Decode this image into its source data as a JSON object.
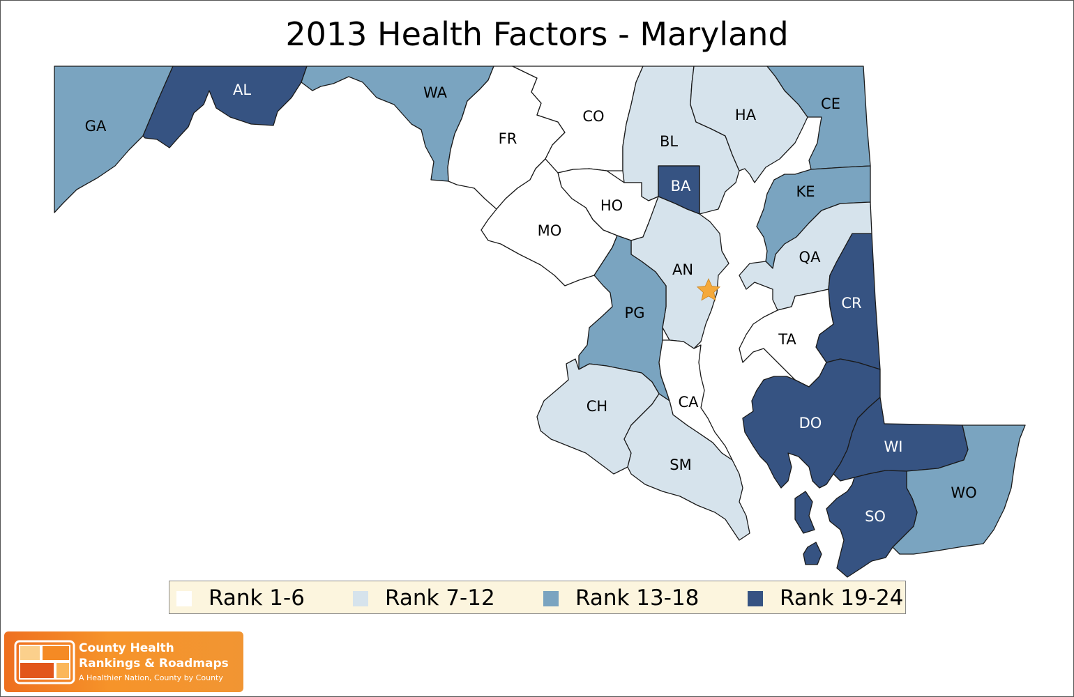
{
  "title": "2013 Health Factors - Maryland",
  "palette": {
    "rank_1_6": "#ffffff",
    "rank_7_12": "#d6e3ec",
    "rank_13_18": "#7aa4c0",
    "rank_19_24": "#365382"
  },
  "counties": [
    {
      "abbr": "GA",
      "rank_group": "rank_13_18"
    },
    {
      "abbr": "AL",
      "rank_group": "rank_19_24"
    },
    {
      "abbr": "WA",
      "rank_group": "rank_13_18"
    },
    {
      "abbr": "FR",
      "rank_group": "rank_1_6"
    },
    {
      "abbr": "CO",
      "rank_group": "rank_1_6"
    },
    {
      "abbr": "BL",
      "rank_group": "rank_7_12"
    },
    {
      "abbr": "HA",
      "rank_group": "rank_7_12"
    },
    {
      "abbr": "CE",
      "rank_group": "rank_13_18"
    },
    {
      "abbr": "BA",
      "rank_group": "rank_19_24"
    },
    {
      "abbr": "HO",
      "rank_group": "rank_1_6"
    },
    {
      "abbr": "MO",
      "rank_group": "rank_1_6"
    },
    {
      "abbr": "KE",
      "rank_group": "rank_13_18"
    },
    {
      "abbr": "QA",
      "rank_group": "rank_7_12"
    },
    {
      "abbr": "AN",
      "rank_group": "rank_7_12"
    },
    {
      "abbr": "PG",
      "rank_group": "rank_13_18"
    },
    {
      "abbr": "CR",
      "rank_group": "rank_19_24"
    },
    {
      "abbr": "TA",
      "rank_group": "rank_1_6"
    },
    {
      "abbr": "CA",
      "rank_group": "rank_1_6"
    },
    {
      "abbr": "CH",
      "rank_group": "rank_7_12"
    },
    {
      "abbr": "SM",
      "rank_group": "rank_7_12"
    },
    {
      "abbr": "DO",
      "rank_group": "rank_19_24"
    },
    {
      "abbr": "WI",
      "rank_group": "rank_19_24"
    },
    {
      "abbr": "WO",
      "rank_group": "rank_13_18"
    },
    {
      "abbr": "SO",
      "rank_group": "rank_19_24"
    }
  ],
  "capital_marker": {
    "icon": "star-icon",
    "color": "#f5a93a"
  },
  "legend": [
    {
      "label": "Rank 1-6",
      "color": "#ffffff"
    },
    {
      "label": "Rank 7-12",
      "color": "#d6e3ec"
    },
    {
      "label": "Rank 13-18",
      "color": "#7aa4c0"
    },
    {
      "label": "Rank 19-24",
      "color": "#365382"
    }
  ],
  "brand": {
    "name_line1": "County Health",
    "name_line2": "Rankings & Roadmaps",
    "tagline": "A Healthier Nation, County by County"
  }
}
